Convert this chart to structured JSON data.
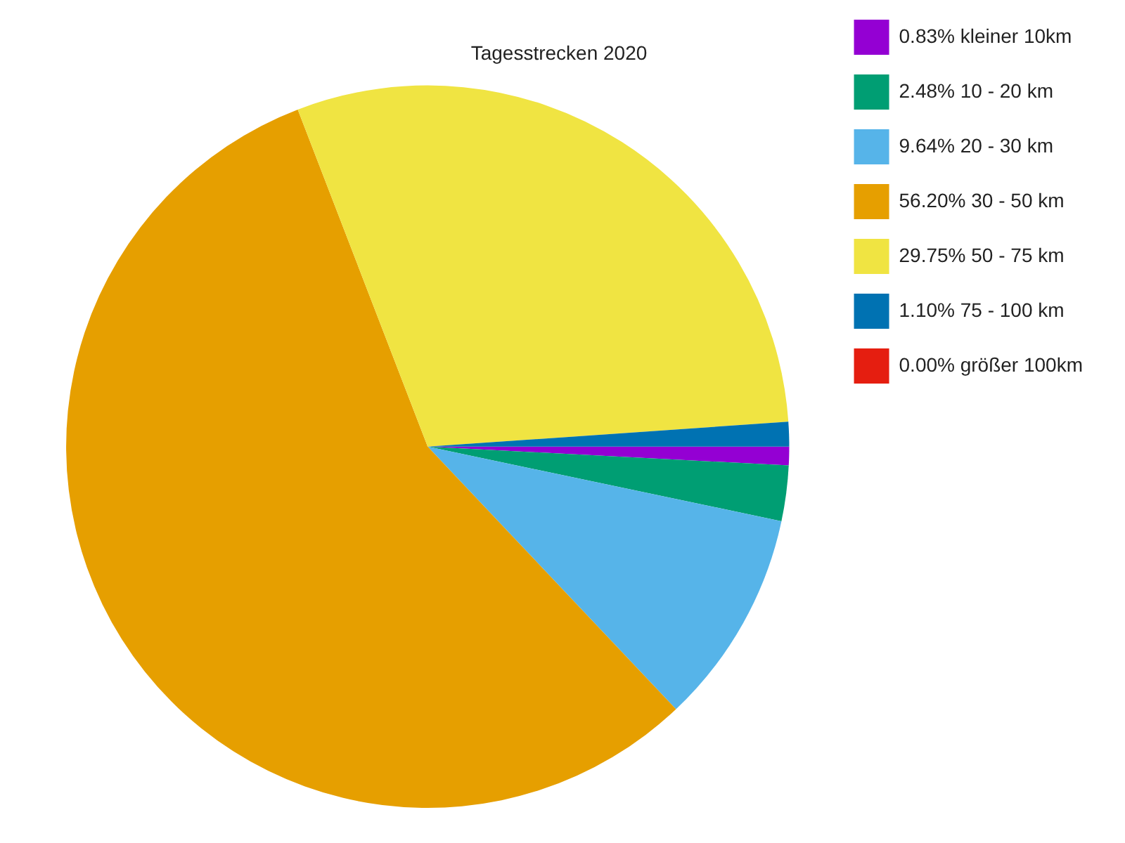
{
  "chart_data": {
    "type": "pie",
    "title": "Tagesstrecken 2020",
    "categories": [
      "0.83% kleiner 10km",
      "2.48% 10 - 20 km",
      "9.64% 20 - 30 km",
      "56.20% 30 - 50 km",
      "29.75% 50 - 75 km",
      "1.10% 75 - 100 km",
      "0.00% größer 100km"
    ],
    "values": [
      0.83,
      2.48,
      9.64,
      56.2,
      29.75,
      1.1,
      0
    ],
    "colors": [
      "#9400d3",
      "#009e73",
      "#56b4e9",
      "#e69f00",
      "#f0e442",
      "#0072b2",
      "#e51e10"
    ],
    "legend": "top right"
  }
}
